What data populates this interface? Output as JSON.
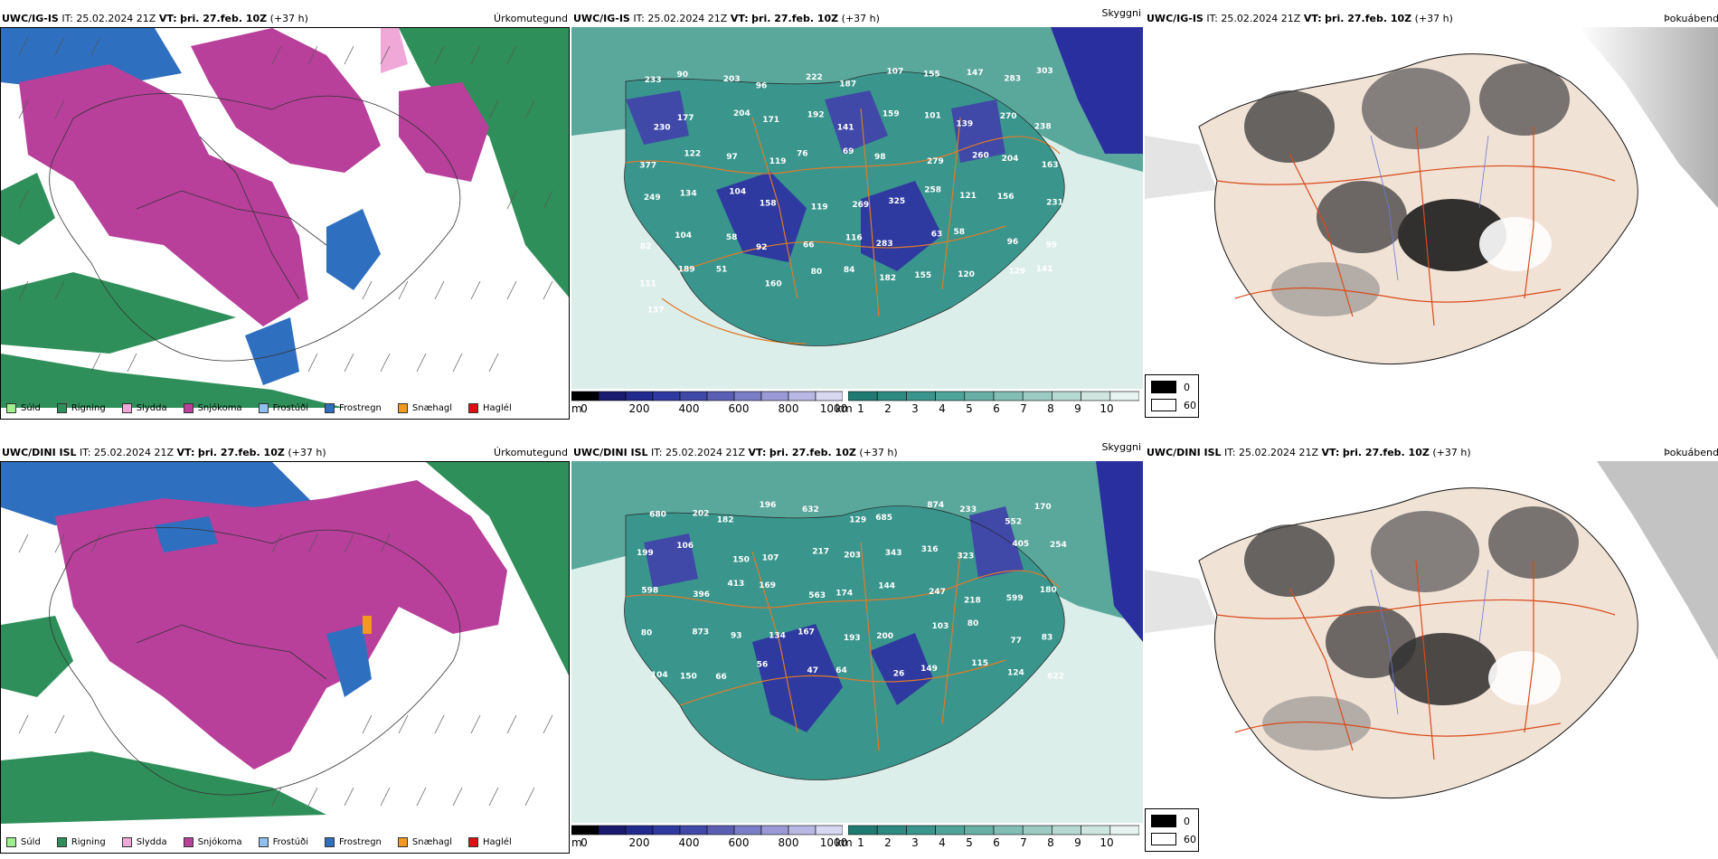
{
  "rows": [
    {
      "model": "UWC/IG-IS",
      "it_label": "IT:",
      "it_value": "25.02.2024 21Z",
      "vt_label": "VT:",
      "vt_value": "þri. 27.feb. 10Z",
      "lead": "(+37 h)",
      "panels": {
        "precip_title": "Úrkomutegund",
        "vis_title": "Skyggni",
        "fog_title": "Þokuábendi"
      },
      "cloud_numbers": [
        "233",
        "90",
        "203",
        "96",
        "222",
        "187",
        "107",
        "155",
        "147",
        "283",
        "303",
        "230",
        "177",
        "204",
        "171",
        "192",
        "141",
        "159",
        "101",
        "139",
        "270",
        "238",
        "377",
        "122",
        "97",
        "119",
        "76",
        "69",
        "98",
        "279",
        "260",
        "204",
        "163",
        "249",
        "134",
        "104",
        "158",
        "119",
        "269",
        "325",
        "258",
        "121",
        "156",
        "231",
        "82",
        "104",
        "58",
        "92",
        "66",
        "116",
        "283",
        "63",
        "58",
        "96",
        "99",
        "111",
        "189",
        "51",
        "160",
        "80",
        "84",
        "182",
        "155",
        "120",
        "129",
        "141",
        "137"
      ]
    },
    {
      "model": "UWC/DINI ISL",
      "it_label": "IT:",
      "it_value": "25.02.2024 21Z",
      "vt_label": "VT:",
      "vt_value": "þri. 27.feb. 10Z",
      "lead": "(+37 h)",
      "panels": {
        "precip_title": "Úrkomutegund",
        "vis_title": "Skyggni",
        "fog_title": "Þokuábendi"
      },
      "cloud_numbers": [
        "680",
        "202",
        "182",
        "196",
        "632",
        "129",
        "685",
        "874",
        "233",
        "552",
        "170",
        "199",
        "106",
        "150",
        "107",
        "217",
        "203",
        "343",
        "316",
        "323",
        "405",
        "254",
        "598",
        "396",
        "413",
        "169",
        "563",
        "174",
        "144",
        "247",
        "218",
        "599",
        "180",
        "80",
        "873",
        "93",
        "134",
        "167",
        "193",
        "200",
        "103",
        "80",
        "77",
        "83",
        "104",
        "150",
        "66",
        "56",
        "47",
        "64",
        "26",
        "149",
        "115",
        "124",
        "622"
      ]
    }
  ],
  "precip_legend": [
    {
      "label": "Súld",
      "color": "#9fef8f"
    },
    {
      "label": "Rigning",
      "color": "#2f8f5a"
    },
    {
      "label": "Slydda",
      "color": "#f0a8d8"
    },
    {
      "label": "Snjókoma",
      "color": "#b8409a"
    },
    {
      "label": "Frostúði",
      "color": "#8fc0f0"
    },
    {
      "label": "Frostregn",
      "color": "#2f6fbf"
    },
    {
      "label": "Snæhagl",
      "color": "#f39a1e"
    },
    {
      "label": "Haglél",
      "color": "#e01010"
    }
  ],
  "cloudbase_bar": {
    "unit": "m",
    "ticks": [
      "0",
      "200",
      "400",
      "600",
      "800",
      "1000"
    ],
    "colors": [
      "#000000",
      "#1a1a6e",
      "#232a8e",
      "#2f3aa0",
      "#4048a8",
      "#5a5fb4",
      "#7a7ec6",
      "#9a9ad6",
      "#b8b8e4",
      "#d8d8f2"
    ]
  },
  "visibility_bar": {
    "unit": "km",
    "ticks": [
      "1",
      "2",
      "3",
      "4",
      "5",
      "6",
      "7",
      "8",
      "9",
      "10"
    ],
    "colors": [
      "#1f7a72",
      "#2c8a80",
      "#3a968c",
      "#4fa398",
      "#68b0a6",
      "#82beb4",
      "#9ccbc2",
      "#b6d9d1",
      "#cfe6e0",
      "#e6f3f0"
    ]
  },
  "fog_legend": [
    {
      "value": "0",
      "color": "#000000"
    },
    {
      "value": "60",
      "color": "#ffffff"
    }
  ]
}
